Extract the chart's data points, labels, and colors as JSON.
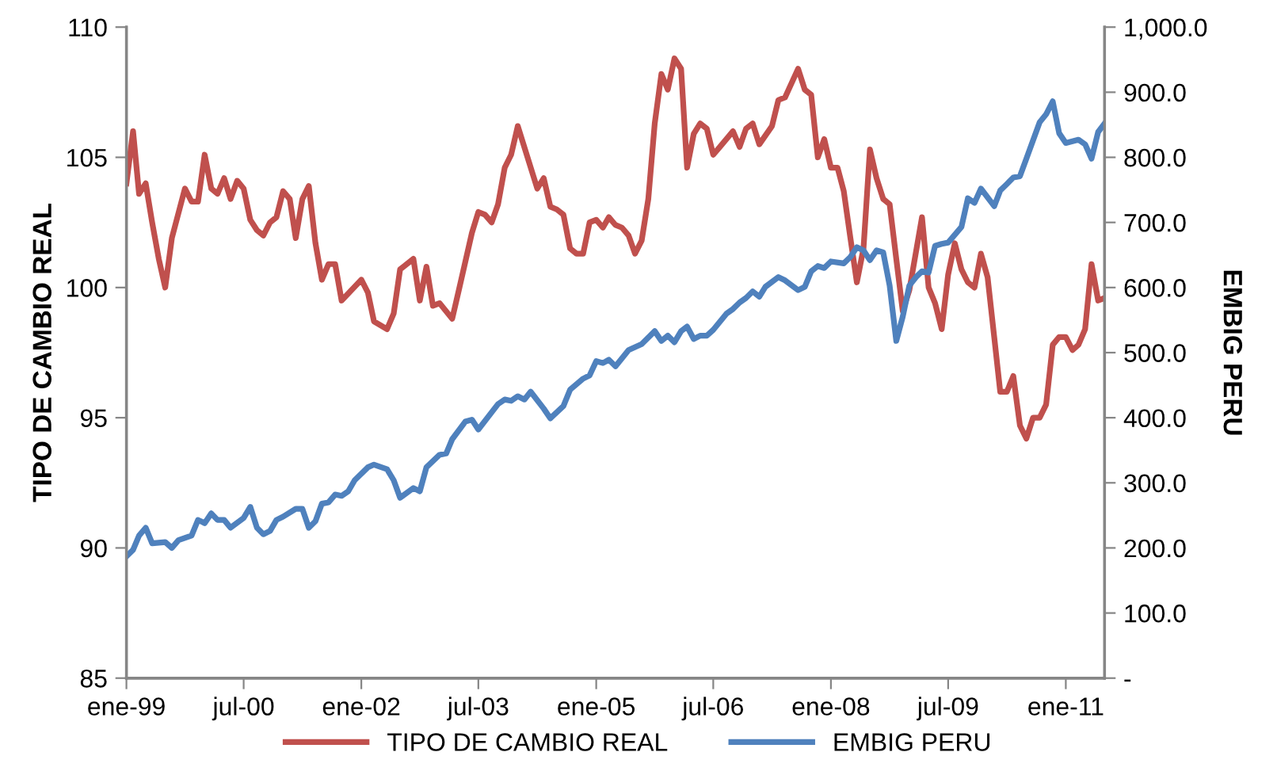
{
  "chart_data": {
    "type": "line",
    "ylabel": "TIPO DE CAMBIO REAL",
    "y2label": "EMBIG PERU",
    "xlim": [
      "1999-01",
      "2011-07"
    ],
    "xticks": [
      {
        "value": "1999-01",
        "label": "ene-99"
      },
      {
        "value": "2000-07",
        "label": "jul-00"
      },
      {
        "value": "2002-01",
        "label": "ene-02"
      },
      {
        "value": "2003-07",
        "label": "jul-03"
      },
      {
        "value": "2005-01",
        "label": "ene-05"
      },
      {
        "value": "2006-07",
        "label": "jul-06"
      },
      {
        "value": "2008-01",
        "label": "ene-08"
      },
      {
        "value": "2009-07",
        "label": "jul-09"
      },
      {
        "value": "2011-01",
        "label": "ene-11"
      }
    ],
    "ylim": [
      85,
      110
    ],
    "yticks": [
      85,
      90,
      95,
      100,
      105,
      110
    ],
    "y2lim": [
      0,
      1000
    ],
    "y2ticks": [
      {
        "value": 0,
        "label": "-"
      },
      {
        "value": 100,
        "label": "100.0"
      },
      {
        "value": 200,
        "label": "200.0"
      },
      {
        "value": 300,
        "label": "300.0"
      },
      {
        "value": 400,
        "label": "400.0"
      },
      {
        "value": 500,
        "label": "500.0"
      },
      {
        "value": 600,
        "label": "600.0"
      },
      {
        "value": 700,
        "label": "700.0"
      },
      {
        "value": 800,
        "label": "800.0"
      },
      {
        "value": 900,
        "label": "900.0"
      },
      {
        "value": 1000,
        "label": "1,000.0"
      }
    ],
    "grid": false,
    "legend": "bottom",
    "marker": "none",
    "line_style": "solid",
    "series": [
      {
        "name": "TIPO DE CAMBIO REAL",
        "color": "#c0504d",
        "x": [
          "1999-01",
          "1999-02",
          "1999-03",
          "1999-04",
          "1999-05",
          "1999-06",
          "1999-07",
          "1999-08",
          "1999-10",
          "1999-11",
          "1999-12",
          "2000-01",
          "2000-02",
          "2000-03",
          "2000-04",
          "2000-05",
          "2000-06",
          "2000-07",
          "2000-08",
          "2000-09",
          "2000-10",
          "2000-11",
          "2000-12",
          "2001-01",
          "2001-02",
          "2001-03",
          "2001-04",
          "2001-05",
          "2001-06",
          "2001-07",
          "2001-08",
          "2001-09",
          "2001-10",
          "2002-01",
          "2002-02",
          "2002-03",
          "2002-05",
          "2002-06",
          "2002-07",
          "2002-09",
          "2002-10",
          "2002-11",
          "2002-12",
          "2003-01",
          "2003-03",
          "2003-04",
          "2003-06",
          "2003-07",
          "2003-08",
          "2003-09",
          "2003-10",
          "2003-11",
          "2003-12",
          "2004-01",
          "2004-04",
          "2004-05",
          "2004-06",
          "2004-07",
          "2004-08",
          "2004-09",
          "2004-10",
          "2004-11",
          "2004-12",
          "2005-01",
          "2005-02",
          "2005-03",
          "2005-04",
          "2005-05",
          "2005-06",
          "2005-07",
          "2005-08",
          "2005-09",
          "2005-10",
          "2005-11",
          "2005-12",
          "2006-01",
          "2006-02",
          "2006-03",
          "2006-04",
          "2006-05",
          "2006-06",
          "2006-07",
          "2006-08",
          "2006-10",
          "2006-11",
          "2006-12",
          "2007-01",
          "2007-02",
          "2007-04",
          "2007-05",
          "2007-06",
          "2007-08",
          "2007-09",
          "2007-10",
          "2007-11",
          "2007-12",
          "2008-01",
          "2008-02",
          "2008-03",
          "2008-04",
          "2008-05",
          "2008-06",
          "2008-07",
          "2008-08",
          "2008-09",
          "2008-10",
          "2008-11",
          "2008-12",
          "2009-01",
          "2009-03",
          "2009-04",
          "2009-05",
          "2009-06",
          "2009-07",
          "2009-08",
          "2009-09",
          "2009-10",
          "2009-11",
          "2009-12",
          "2010-01",
          "2010-02",
          "2010-03",
          "2010-04",
          "2010-05",
          "2010-06",
          "2010-07",
          "2010-08",
          "2010-09",
          "2010-10",
          "2010-11",
          "2010-12",
          "2011-01",
          "2011-02",
          "2011-03",
          "2011-04",
          "2011-05",
          "2011-06",
          "2011-07"
        ],
        "values": [
          104.0,
          106.0,
          103.6,
          104.0,
          102.5,
          101.1,
          100.0,
          101.9,
          103.8,
          103.3,
          103.3,
          105.1,
          103.8,
          103.6,
          104.2,
          103.4,
          104.1,
          103.8,
          102.6,
          102.2,
          102.0,
          102.5,
          102.7,
          103.7,
          103.4,
          101.9,
          103.4,
          103.9,
          101.7,
          100.3,
          100.9,
          100.9,
          99.5,
          100.3,
          99.8,
          98.7,
          98.4,
          99.0,
          100.7,
          101.1,
          99.5,
          100.8,
          99.3,
          99.4,
          98.8,
          99.9,
          102.1,
          102.9,
          102.8,
          102.5,
          103.2,
          104.6,
          105.1,
          106.2,
          103.8,
          104.2,
          103.1,
          103.0,
          102.8,
          101.5,
          101.3,
          101.3,
          102.5,
          102.6,
          102.3,
          102.7,
          102.4,
          102.3,
          102.0,
          101.3,
          101.8,
          103.4,
          106.3,
          108.2,
          107.6,
          108.8,
          108.4,
          104.6,
          105.9,
          106.3,
          106.1,
          105.1,
          105.4,
          106.0,
          105.4,
          106.1,
          106.3,
          105.5,
          106.2,
          107.2,
          107.3,
          108.4,
          107.6,
          107.4,
          105.0,
          105.7,
          104.6,
          104.6,
          103.7,
          101.9,
          100.2,
          101.5,
          105.3,
          104.2,
          103.4,
          103.2,
          101.1,
          99.1,
          99.9,
          102.7,
          100.0,
          99.4,
          98.4,
          100.5,
          101.7,
          100.7,
          100.2,
          100.0,
          101.3,
          100.4,
          98.1,
          96.0,
          96.0,
          96.6,
          94.7,
          94.2,
          95.0,
          95.0,
          95.5,
          97.8,
          98.1,
          98.1,
          97.6,
          97.8,
          98.4,
          100.9,
          99.5,
          99.6
        ]
      },
      {
        "name": "EMBIG PERU",
        "color": "#4f81bd",
        "axis": "y2",
        "x": [
          "1999-01",
          "1999-02",
          "1999-03",
          "1999-04",
          "1999-05",
          "1999-07",
          "1999-08",
          "1999-09",
          "1999-11",
          "1999-12",
          "2000-01",
          "2000-02",
          "2000-03",
          "2000-04",
          "2000-05",
          "2000-07",
          "2000-08",
          "2000-09",
          "2000-10",
          "2000-11",
          "2000-12",
          "2001-01",
          "2001-03",
          "2001-04",
          "2001-05",
          "2001-06",
          "2001-07",
          "2001-08",
          "2001-09",
          "2001-10",
          "2001-11",
          "2001-12",
          "2002-02",
          "2002-03",
          "2002-05",
          "2002-06",
          "2002-07",
          "2002-09",
          "2002-10",
          "2002-11",
          "2003-01",
          "2003-02",
          "2003-03",
          "2003-05",
          "2003-06",
          "2003-07",
          "2003-10",
          "2003-11",
          "2003-12",
          "2004-01",
          "2004-02",
          "2004-03",
          "2004-05",
          "2004-06",
          "2004-08",
          "2004-09",
          "2004-11",
          "2004-12",
          "2005-01",
          "2005-02",
          "2005-03",
          "2005-04",
          "2005-06",
          "2005-08",
          "2005-10",
          "2005-11",
          "2005-12",
          "2006-01",
          "2006-02",
          "2006-03",
          "2006-04",
          "2006-05",
          "2006-06",
          "2006-07",
          "2006-09",
          "2006-10",
          "2006-11",
          "2006-12",
          "2007-01",
          "2007-02",
          "2007-03",
          "2007-05",
          "2007-06",
          "2007-08",
          "2007-09",
          "2007-10",
          "2007-11",
          "2007-12",
          "2008-01",
          "2008-03",
          "2008-04",
          "2008-05",
          "2008-06",
          "2008-07",
          "2008-08",
          "2008-09",
          "2008-10",
          "2008-11",
          "2008-12",
          "2009-01",
          "2009-02",
          "2009-03",
          "2009-04",
          "2009-05",
          "2009-06",
          "2009-07",
          "2009-09",
          "2009-10",
          "2009-11",
          "2009-12",
          "2010-02",
          "2010-03",
          "2010-04",
          "2010-05",
          "2010-06",
          "2010-07",
          "2010-09",
          "2010-10",
          "2010-11",
          "2010-12",
          "2011-01",
          "2011-03",
          "2011-04",
          "2011-05",
          "2011-06",
          "2011-07"
        ],
        "values": [
          187,
          197,
          219,
          231,
          207,
          209,
          200,
          212,
          219,
          243,
          238,
          253,
          243,
          243,
          231,
          246,
          263,
          231,
          221,
          226,
          243,
          248,
          260,
          260,
          231,
          241,
          268,
          270,
          282,
          280,
          287,
          304,
          324,
          328,
          321,
          304,
          277,
          292,
          287,
          324,
          343,
          345,
          367,
          394,
          397,
          382,
          421,
          428,
          426,
          433,
          428,
          440,
          414,
          399,
          418,
          443,
          460,
          465,
          487,
          484,
          489,
          479,
          504,
          513,
          533,
          518,
          526,
          516,
          533,
          540,
          521,
          526,
          526,
          535,
          560,
          567,
          577,
          584,
          594,
          586,
          601,
          616,
          611,
          596,
          601,
          625,
          633,
          630,
          640,
          637,
          647,
          662,
          657,
          642,
          657,
          654,
          603,
          518,
          555,
          603,
          616,
          625,
          623,
          664,
          667,
          669,
          693,
          737,
          730,
          752,
          725,
          749,
          759,
          769,
          771,
          798,
          854,
          866,
          886,
          837,
          822,
          827,
          820,
          798,
          839,
          852
        ]
      }
    ]
  }
}
